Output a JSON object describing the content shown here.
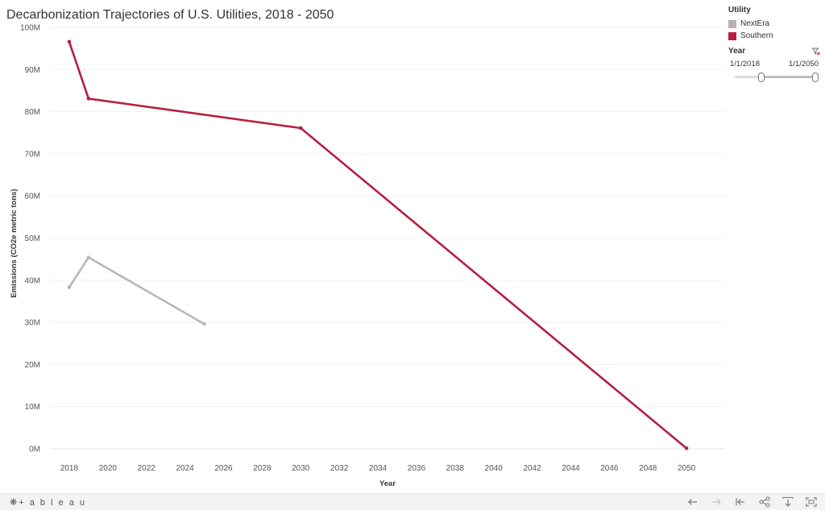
{
  "chart_data": {
    "type": "line",
    "title": "Decarbonization Trajectories of  U.S. Utilities, 2018 - 2050",
    "xlabel": "Year",
    "ylabel": "Emissions (CO2e metric tons)",
    "xlim": [
      2017,
      2052
    ],
    "ylim": [
      -2.5,
      100
    ],
    "x_ticks": [
      2018,
      2020,
      2022,
      2024,
      2026,
      2028,
      2030,
      2032,
      2034,
      2036,
      2038,
      2040,
      2042,
      2044,
      2046,
      2048,
      2050
    ],
    "y_ticks": [
      0,
      10,
      20,
      30,
      40,
      50,
      60,
      70,
      80,
      90,
      100
    ],
    "y_tick_labels": [
      "0M",
      "10M",
      "20M",
      "30M",
      "40M",
      "50M",
      "60M",
      "70M",
      "80M",
      "90M",
      "100M"
    ],
    "y_unit": "M",
    "grid": true,
    "legend_position": "right",
    "series": [
      {
        "name": "NextEra",
        "color": "#bab0ac",
        "line_color": "#b8b8b8",
        "x": [
          2018,
          2019,
          2025
        ],
        "y": [
          38.3,
          45.4,
          29.6
        ]
      },
      {
        "name": "Southern",
        "color": "#b5203f",
        "line_color": "#b5203f",
        "x": [
          2018,
          2019,
          2030,
          2050
        ],
        "y": [
          96.6,
          83.1,
          76.1,
          0.1
        ]
      }
    ]
  },
  "legend": {
    "title": "Utility",
    "items": [
      {
        "label": "NextEra",
        "color": "#bab0ac"
      },
      {
        "label": "Southern",
        "color": "#b5203f"
      }
    ]
  },
  "year_filter": {
    "title": "Year",
    "start_label": "1/1/2018",
    "end_label": "1/1/2050",
    "icon": "filter-clear-icon"
  },
  "toolbar": {
    "logo_text": "+ a b l e a u",
    "buttons": [
      "undo-icon",
      "redo-icon",
      "revert-icon",
      "share-icon",
      "download-icon",
      "fullscreen-icon"
    ]
  }
}
